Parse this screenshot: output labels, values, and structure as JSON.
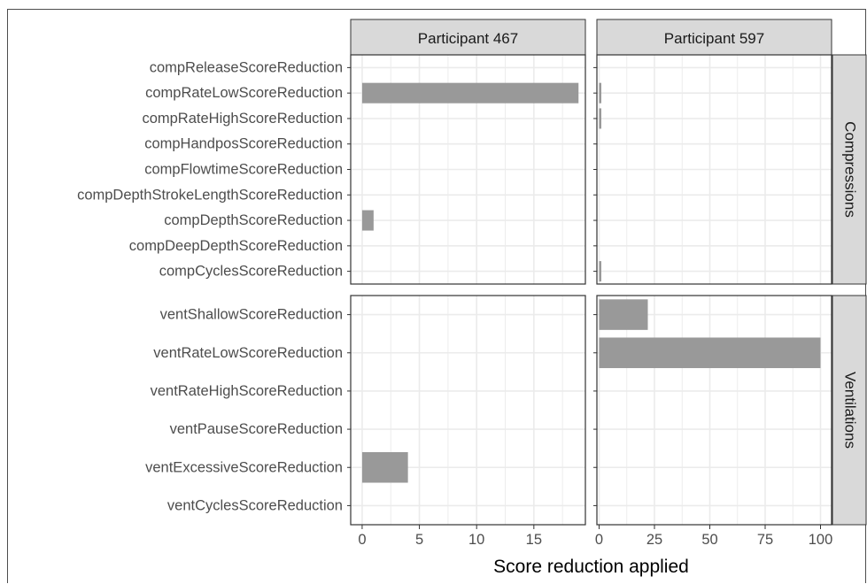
{
  "chart_data": {
    "type": "bar",
    "orientation": "horizontal",
    "facet_cols": [
      "Participant 467",
      "Participant 597"
    ],
    "xlabel": "Score reduction applied",
    "xticks": [
      [
        0,
        5,
        10,
        15
      ],
      [
        0,
        25,
        50,
        75,
        100
      ]
    ],
    "xlim": [
      [
        -1,
        19.5
      ],
      [
        -1,
        105
      ]
    ],
    "bar_color": "#999999",
    "grid": true,
    "panels": [
      {
        "name": "Compressions",
        "categories": [
          "compReleaseScoreReduction",
          "compRateLowScoreReduction",
          "compRateHighScoreReduction",
          "compHandposScoreReduction",
          "compFlowtimeScoreReduction",
          "compDepthStrokeLengthScoreReduction",
          "compDepthScoreReduction",
          "compDeepDepthScoreReduction",
          "compCyclesScoreReduction"
        ],
        "values": [
          [
            0,
            18.9,
            0,
            0,
            0,
            0,
            1,
            0,
            0
          ],
          [
            0,
            1,
            1,
            0,
            0,
            0,
            0,
            0,
            1
          ]
        ]
      },
      {
        "name": "Ventilations",
        "categories": [
          "ventShallowScoreReduction",
          "ventRateLowScoreReduction",
          "ventRateHighScoreReduction",
          "ventPauseScoreReduction",
          "ventExcessiveScoreReduction",
          "ventCyclesScoreReduction"
        ],
        "values": [
          [
            0,
            0,
            0,
            0,
            4,
            0
          ],
          [
            22,
            100,
            0,
            0,
            0,
            0
          ]
        ]
      }
    ]
  }
}
